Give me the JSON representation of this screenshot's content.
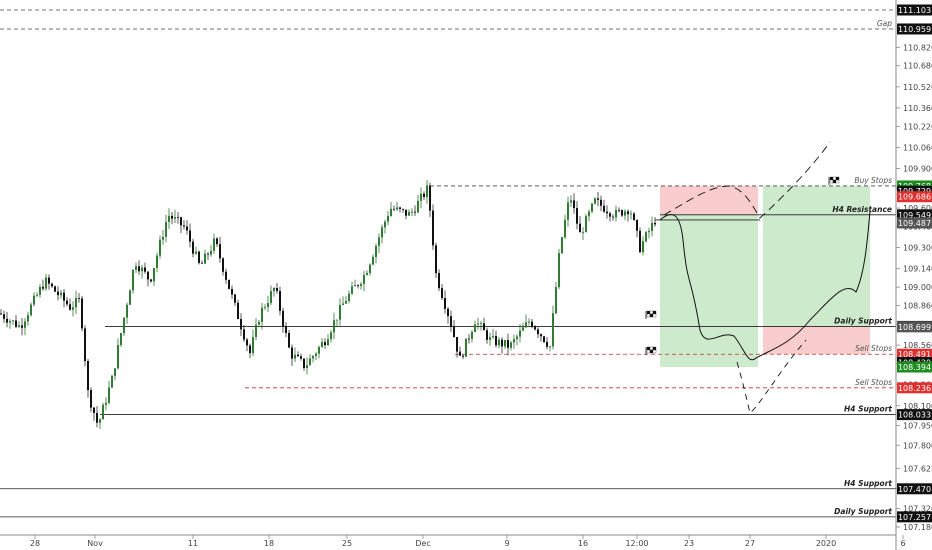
{
  "chart_data": {
    "type": "candlestick",
    "symbol": "USD/JPY",
    "ylim": [
      107.14,
      111.2
    ],
    "y_ticks": [
      107.18,
      107.32,
      107.47,
      107.625,
      107.8,
      107.95,
      108.1,
      108.26,
      108.42,
      108.56,
      108.72,
      108.86,
      109.0,
      109.14,
      109.3,
      109.46,
      109.6,
      109.75,
      109.9,
      110.06,
      110.22,
      110.36,
      110.52,
      110.68,
      110.82
    ],
    "y_tick_labels": [
      "107.180",
      "107.320",
      "107.470",
      "107.625",
      "107.800",
      "107.950",
      "108.100",
      "108.260",
      "108.420",
      "108.560",
      "108.720",
      "108.860",
      "109.000",
      "109.140",
      "109.300",
      "109.460",
      "109.600",
      "109.750",
      "109.900",
      "110.060",
      "110.220",
      "110.360",
      "110.520",
      "110.680",
      "110.820"
    ],
    "x_ticks": [
      {
        "label": "28",
        "color": "#444444"
      },
      {
        "label": "Nov",
        "color": "#444444"
      },
      {
        "label": "11",
        "color": "#444444"
      },
      {
        "label": "18",
        "color": "#444444"
      },
      {
        "label": "25",
        "color": "#444444"
      },
      {
        "label": "Dec",
        "color": "#444444"
      },
      {
        "label": "9",
        "color": "#444444"
      },
      {
        "label": "16",
        "color": "#444444"
      },
      {
        "label": "12:00",
        "color": "#444444"
      },
      {
        "label": "23",
        "color": "#444444"
      },
      {
        "label": "27",
        "color": "#444444"
      },
      {
        "label": "2020",
        "color": "#444444"
      },
      {
        "label": "6",
        "color": "#444444"
      }
    ],
    "candle_up_color": "#1b5e20",
    "candle_down_color": "#111111",
    "levels": [
      {
        "label": "",
        "value": 111.103,
        "badge": "111.103",
        "badge_color": "#111111",
        "style": "dashed",
        "color": "#444444"
      },
      {
        "label": "Gap",
        "value": 110.959,
        "badge": "110.959",
        "badge_color": "#111111",
        "style": "dashed",
        "color": "#444444"
      },
      {
        "label": "Buy Stops",
        "value": 109.768,
        "badge": "109.768",
        "badge_color": "#1e8c1e",
        "style": "dashed",
        "color": "#444444"
      },
      {
        "label": "",
        "value": 109.729,
        "badge": "109.729",
        "badge_color": "#111111",
        "style": "none",
        "color": "#444444"
      },
      {
        "label": "",
        "value": 109.686,
        "badge": "109.686",
        "badge_color": "#e03030",
        "style": "none",
        "color": "#444444"
      },
      {
        "label": "H4 Resistance",
        "value": 109.549,
        "badge": "109.549",
        "badge_color": "#111111",
        "style": "solid",
        "color": "#222222"
      },
      {
        "label": "",
        "value": 109.487,
        "badge": "109.487",
        "badge_color": "#555555",
        "style": "none",
        "color": "#444444"
      },
      {
        "label": "Daily Support",
        "value": 108.702,
        "badge": "108.702",
        "badge_color": "#111111",
        "style": "solid",
        "color": "#222222"
      },
      {
        "label": "",
        "value": 108.699,
        "badge": "108.699",
        "badge_color": "#555555",
        "style": "none",
        "color": "#444444"
      },
      {
        "label": "Sell Stops",
        "value": 108.491,
        "badge": "108.491",
        "badge_color": "#e03030",
        "style": "dashed",
        "color": "#c03030"
      },
      {
        "label": "",
        "value": 108.429,
        "badge": "108.429",
        "badge_color": "#111111",
        "style": "none",
        "color": "#444444"
      },
      {
        "label": "",
        "value": 108.394,
        "badge": "108.394",
        "badge_color": "#1e8c1e",
        "style": "none",
        "color": "#444444"
      },
      {
        "label": "Sell Stops",
        "value": 108.236,
        "badge": "108.236",
        "badge_color": "#e03030",
        "style": "dashed",
        "color": "#c03030"
      },
      {
        "label": "H4 Support",
        "value": 108.033,
        "badge": "108.033",
        "badge_color": "#111111",
        "style": "solid",
        "color": "#222222"
      },
      {
        "label": "H4 Support",
        "value": 107.47,
        "badge": "107.470",
        "badge_color": "#111111",
        "style": "solid",
        "color": "#222222"
      },
      {
        "label": "Daily Support",
        "value": 107.257,
        "badge": "107.257",
        "badge_color": "#111111",
        "style": "solid",
        "color": "#222222"
      }
    ],
    "zones": [
      {
        "kind": "short-stop",
        "color": "#f8c8c8",
        "y_top": 109.768,
        "y_bottom": 109.549
      },
      {
        "kind": "short-target",
        "color": "#c8e8c8",
        "y_top": 109.549,
        "y_bottom": 108.394
      },
      {
        "kind": "long-target",
        "color": "#c8e8c8",
        "y_top": 109.768,
        "y_bottom": 108.702
      },
      {
        "kind": "long-stop",
        "color": "#f8c8c8",
        "y_top": 108.702,
        "y_bottom": 108.491
      }
    ]
  }
}
